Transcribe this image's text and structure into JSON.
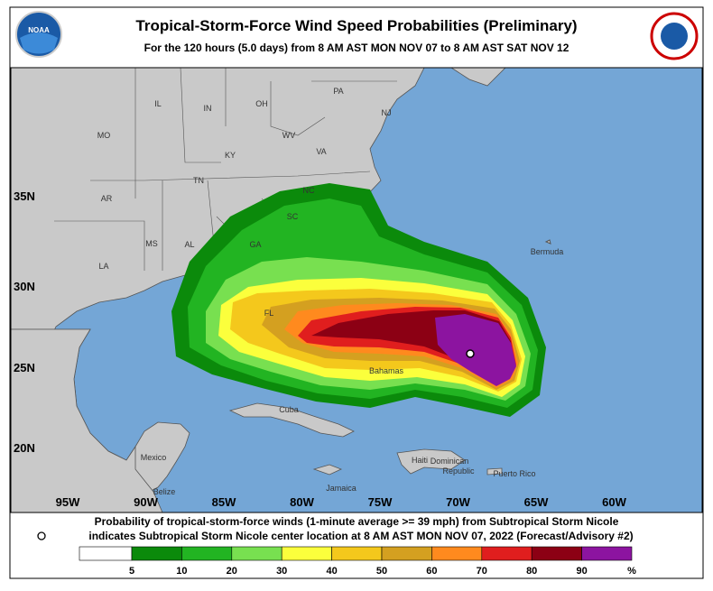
{
  "header": {
    "title": "Tropical-Storm-Force Wind Speed Probabilities (Preliminary)",
    "subtitle": "For the 120 hours (5.0 days) from 8 AM AST MON NOV 07 to 8 AM AST SAT NOV 12",
    "logo_left": "NOAA"
  },
  "map": {
    "latitude_labels": [
      "35N",
      "30N",
      "25N",
      "20N"
    ],
    "longitude_labels": [
      "95W",
      "90W",
      "85W",
      "80W",
      "75W",
      "70W",
      "65W",
      "60W"
    ],
    "places": [
      "PA",
      "NJ",
      "IL",
      "IN",
      "OH",
      "MO",
      "WV",
      "VA",
      "KY",
      "NC",
      "TN",
      "AR",
      "SC",
      "MS",
      "AL",
      "GA",
      "LA",
      "FL",
      "Bermuda",
      "Bahamas",
      "Cuba",
      "Mexico",
      "Belize",
      "Jamaica",
      "Haiti",
      "Dominican",
      "Republic",
      "Puerto Rico"
    ]
  },
  "footer": {
    "lines": [
      "Probability of tropical-storm-force winds (1-minute average >= 39 mph) from Subtropical Storm Nicole",
      "indicates Subtropical Storm Nicole center location at 8 AM AST MON NOV 07, 2022 (Forecast/Advisory #2)"
    ]
  },
  "legend": {
    "labels": [
      "5",
      "10",
      "20",
      "30",
      "40",
      "50",
      "60",
      "70",
      "80",
      "90",
      "%"
    ],
    "colors": [
      "#ffffff",
      "#0b8a0b",
      "#22b422",
      "#78e050",
      "#fbff3c",
      "#f4c81c",
      "#d4a020",
      "#ff8a1e",
      "#e01e1e",
      "#8c0014",
      "#8c14a0"
    ]
  }
}
